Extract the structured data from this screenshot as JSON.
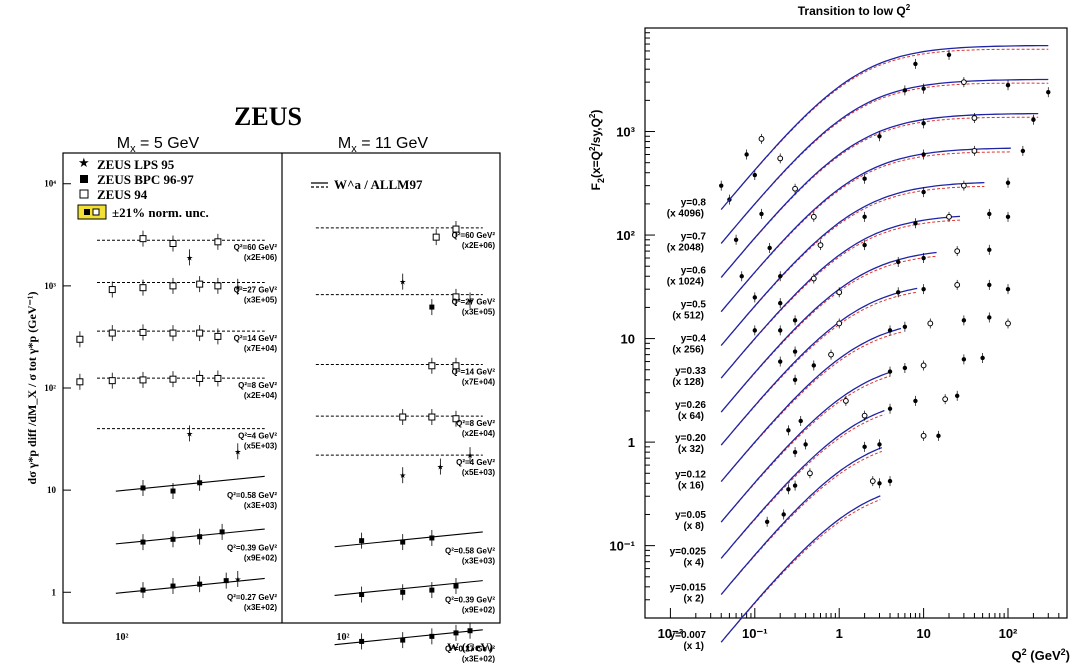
{
  "chart_data": [
    {
      "type": "scatter",
      "title": "ZEUS",
      "ylabel": "dσ γ*p diff /dM_X / σ tot γ*p (GeV⁻¹)",
      "xlabel": "W (GeV)",
      "yscale": "log",
      "xscale": "log",
      "ylim": [
        0.5,
        20000
      ],
      "y_ticks": [
        {
          "value": 1,
          "label": "1"
        },
        {
          "value": 10,
          "label": "10"
        },
        {
          "value": 100,
          "label": "10²"
        },
        {
          "value": 1000,
          "label": "10³"
        },
        {
          "value": 10000,
          "label": "10⁴"
        }
      ],
      "x_tick_label": "10²",
      "legend": {
        "position": "top-left",
        "entries": [
          "ZEUS LPS 95",
          "ZEUS BPC 96-97",
          "ZEUS 94",
          "±21% norm. unc."
        ]
      },
      "model_legend": "W^a / ALLM97",
      "panels": [
        {
          "label": "M_x = 5 GeV",
          "bins": [
            {
              "q2": "Q²=60 GeV²",
              "scale": "(x2E+06)",
              "y": 2800,
              "model": "dashed",
              "points": [
                [
                  97,
                  2900,
                  "open"
                ],
                [
                  120,
                  2600,
                  "open"
                ],
                [
                  135,
                  1900,
                  "star"
                ],
                [
                  165,
                  2700,
                  "open"
                ]
              ]
            },
            {
              "q2": "Q²=27 GeV²",
              "scale": "(x3E+05)",
              "y": 1080,
              "model": "dashed",
              "points": [
                [
                  78,
                  920,
                  "open"
                ],
                [
                  97,
                  960,
                  "open"
                ],
                [
                  120,
                  1000,
                  "open"
                ],
                [
                  145,
                  1040,
                  "open"
                ],
                [
                  165,
                  1000,
                  "open"
                ],
                [
                  190,
                  980,
                  "star"
                ]
              ]
            },
            {
              "q2": "Q²=14 GeV²",
              "scale": "(x7E+04)",
              "y": 360,
              "model": "dashed",
              "points": [
                [
                  62,
                  300,
                  "open"
                ],
                [
                  78,
                  345,
                  "open"
                ],
                [
                  97,
                  350,
                  "open"
                ],
                [
                  120,
                  345,
                  "open"
                ],
                [
                  145,
                  345,
                  "open"
                ],
                [
                  165,
                  320,
                  "open"
                ]
              ]
            },
            {
              "q2": "Q²=8 GeV²",
              "scale": "(x2E+04)",
              "y": 125,
              "model": "dashed",
              "points": [
                [
                  62,
                  115,
                  "open"
                ],
                [
                  78,
                  118,
                  "open"
                ],
                [
                  97,
                  120,
                  "open"
                ],
                [
                  120,
                  122,
                  "open"
                ],
                [
                  145,
                  124,
                  "open"
                ],
                [
                  165,
                  124,
                  "open"
                ]
              ]
            },
            {
              "q2": "Q²=4 GeV²",
              "scale": "(x5E+03)",
              "y": 40,
              "model": "dashed",
              "points": [
                [
                  135,
                  36,
                  "star"
                ],
                [
                  190,
                  24,
                  "star"
                ]
              ]
            },
            {
              "q2": "Q²=0.58 GeV²",
              "scale": "(x3E+03)",
              "y": 10.5,
              "model": "solid",
              "points": [
                [
                  97,
                  10.5,
                  "filled"
                ],
                [
                  120,
                  9.8,
                  "filled"
                ],
                [
                  145,
                  11.8,
                  "filled"
                ]
              ]
            },
            {
              "q2": "Q²=0.39 GeV²",
              "scale": "(x9E+02)",
              "y": 3.2,
              "model": "solid",
              "points": [
                [
                  97,
                  3.1,
                  "filled"
                ],
                [
                  120,
                  3.3,
                  "filled"
                ],
                [
                  145,
                  3.5,
                  "filled"
                ],
                [
                  170,
                  3.9,
                  "filled"
                ]
              ]
            },
            {
              "q2": "Q²=0.27 GeV²",
              "scale": "(x3E+02)",
              "y": 1.05,
              "model": "solid",
              "points": [
                [
                  97,
                  1.05,
                  "filled"
                ],
                [
                  120,
                  1.15,
                  "filled"
                ],
                [
                  145,
                  1.2,
                  "filled"
                ],
                [
                  175,
                  1.3,
                  "filled"
                ],
                [
                  190,
                  1.35,
                  "star"
                ]
              ]
            }
          ]
        },
        {
          "label": "M_x = 11 GeV",
          "bins": [
            {
              "q2": "Q²=60 GeV²",
              "scale": "(x2E+06)",
              "y": 3700,
              "model": "dashed",
              "points": [
                [
                  165,
                  3000,
                  "open"
                ],
                [
                  190,
                  3600,
                  "open"
                ]
              ]
            },
            {
              "q2": "Q²=27 GeV²",
              "scale": "(x3E+05)",
              "y": 820,
              "model": "dashed",
              "points": [
                [
                  130,
                  1100,
                  "star"
                ],
                [
                  160,
                  620,
                  "filled"
                ],
                [
                  190,
                  780,
                  "open"
                ],
                [
                  210,
                  720,
                  "star"
                ]
              ]
            },
            {
              "q2": "Q²=14 GeV²",
              "scale": "(x7E+04)",
              "y": 170,
              "model": "dashed",
              "points": [
                [
                  160,
                  165,
                  "open"
                ],
                [
                  190,
                  165,
                  "open"
                ]
              ]
            },
            {
              "q2": "Q²=8 GeV²",
              "scale": "(x2E+04)",
              "y": 53,
              "model": "dashed",
              "points": [
                [
                  130,
                  52,
                  "open"
                ],
                [
                  160,
                  52,
                  "open"
                ],
                [
                  190,
                  50,
                  "open"
                ]
              ]
            },
            {
              "q2": "Q²=4 GeV²",
              "scale": "(x5E+03)",
              "y": 22,
              "model": "dashed",
              "points": [
                [
                  130,
                  14,
                  "star"
                ],
                [
                  170,
                  17,
                  "star"
                ],
                [
                  210,
                  22,
                  "star"
                ]
              ]
            },
            {
              "q2": "Q²=0.58 GeV²",
              "scale": "(x3E+03)",
              "y": 3.0,
              "model": "solid",
              "points": [
                [
                  97,
                  3.2,
                  "filled"
                ],
                [
                  130,
                  3.1,
                  "filled"
                ],
                [
                  160,
                  3.4,
                  "filled"
                ]
              ]
            },
            {
              "q2": "Q²=0.39 GeV²",
              "scale": "(x9E+02)",
              "y": 1.0,
              "model": "solid",
              "points": [
                [
                  97,
                  0.95,
                  "filled"
                ],
                [
                  130,
                  1.0,
                  "filled"
                ],
                [
                  160,
                  1.05,
                  "filled"
                ],
                [
                  190,
                  1.15,
                  "filled"
                ]
              ]
            },
            {
              "q2": "Q²=0.27 GeV²",
              "scale": "(x3E+02)",
              "y": 0.33,
              "model": "solid",
              "points": [
                [
                  97,
                  0.33,
                  "filled"
                ],
                [
                  130,
                  0.34,
                  "filled"
                ],
                [
                  160,
                  0.37,
                  "filled"
                ],
                [
                  190,
                  0.4,
                  "filled"
                ],
                [
                  210,
                  0.42,
                  "filled"
                ]
              ]
            }
          ]
        }
      ]
    },
    {
      "type": "line",
      "title": "Transition to low Q²",
      "xlabel": "Q² (GeV²)",
      "ylabel": "F₂(x=Q²/sy,Q²)",
      "xscale": "log",
      "yscale": "log",
      "xlim": [
        0.005,
        500
      ],
      "ylim": [
        0.02,
        10000
      ],
      "x_ticks": [
        {
          "value": 0.01,
          "label": "10⁻²"
        },
        {
          "value": 0.1,
          "label": "10⁻¹"
        },
        {
          "value": 1,
          "label": "1"
        },
        {
          "value": 10,
          "label": "10"
        },
        {
          "value": 100,
          "label": "10²"
        }
      ],
      "y_ticks": [
        {
          "value": 0.1,
          "label": "10⁻¹"
        },
        {
          "value": 1,
          "label": "1"
        },
        {
          "value": 10,
          "label": "10"
        },
        {
          "value": 100,
          "label": "10²"
        },
        {
          "value": 1000,
          "label": "10³"
        }
      ],
      "series": [
        {
          "label": "y=0.007",
          "scale": "(x 1)",
          "amplitude": 0.45,
          "points": [
            [
              0.14,
              0.17
            ],
            [
              0.22,
              0.2
            ],
            [
              2.5,
              0.42
            ],
            [
              3,
              0.4
            ],
            [
              4,
              0.42
            ]
          ]
        },
        {
          "label": "y=0.015",
          "scale": "(x 2)",
          "amplitude": 1.3,
          "points": [
            [
              0.25,
              0.35
            ],
            [
              0.3,
              0.38
            ],
            [
              0.45,
              0.5
            ],
            [
              2,
              0.9
            ],
            [
              3,
              0.95
            ],
            [
              10,
              1.15
            ],
            [
              15,
              1.15
            ]
          ]
        },
        {
          "label": "y=0.025",
          "scale": "(x 4)",
          "amplitude": 2.9,
          "points": [
            [
              0.3,
              0.8
            ],
            [
              0.4,
              0.95
            ],
            [
              2,
              1.8
            ],
            [
              4,
              2.1
            ],
            [
              8,
              2.5
            ],
            [
              18,
              2.6
            ],
            [
              25,
              2.8
            ]
          ]
        },
        {
          "label": "y=0.05",
          "scale": "(x 8)",
          "amplitude": 6.5,
          "points": [
            [
              0.25,
              1.3
            ],
            [
              0.35,
              1.6
            ],
            [
              1.2,
              2.5
            ],
            [
              4,
              4.8
            ],
            [
              6,
              5.2
            ],
            [
              10,
              5.5
            ],
            [
              30,
              6.3
            ],
            [
              50,
              6.5
            ]
          ]
        },
        {
          "label": "y=0.12",
          "scale": "(x 16)",
          "amplitude": 16,
          "points": [
            [
              0.3,
              4
            ],
            [
              0.5,
              5.5
            ],
            [
              0.8,
              7
            ],
            [
              4,
              12
            ],
            [
              6,
              13
            ],
            [
              12,
              14
            ],
            [
              30,
              15
            ],
            [
              60,
              16
            ],
            [
              100,
              14
            ]
          ]
        },
        {
          "label": "y=0.20",
          "scale": "(x 32)",
          "amplitude": 36,
          "points": [
            [
              0.2,
              6
            ],
            [
              0.3,
              7.5
            ],
            [
              1,
              14
            ],
            [
              5,
              28
            ],
            [
              10,
              30
            ],
            [
              25,
              33
            ],
            [
              60,
              33
            ],
            [
              100,
              30
            ]
          ]
        },
        {
          "label": "y=0.26",
          "scale": "(x 64)",
          "amplitude": 75,
          "points": [
            [
              0.2,
              12
            ],
            [
              0.3,
              15
            ],
            [
              1,
              28
            ],
            [
              5,
              55
            ],
            [
              10,
              60
            ],
            [
              25,
              70
            ],
            [
              60,
              72
            ]
          ]
        },
        {
          "label": "y=0.33",
          "scale": "(x 128)",
          "amplitude": 160,
          "points": [
            [
              0.1,
              12
            ],
            [
              0.2,
              22
            ],
            [
              0.5,
              38
            ],
            [
              2,
              80
            ],
            [
              8,
              130
            ],
            [
              20,
              150
            ],
            [
              60,
              160
            ],
            [
              100,
              150
            ]
          ]
        },
        {
          "label": "y=0.4",
          "scale": "(x 256)",
          "amplitude": 330,
          "points": [
            [
              0.1,
              25
            ],
            [
              0.2,
              40
            ],
            [
              0.6,
              80
            ],
            [
              2,
              150
            ],
            [
              10,
              260
            ],
            [
              30,
              300
            ],
            [
              100,
              320
            ]
          ]
        },
        {
          "label": "y=0.5",
          "scale": "(x 512)",
          "amplitude": 700,
          "points": [
            [
              0.07,
              40
            ],
            [
              0.15,
              75
            ],
            [
              0.5,
              150
            ],
            [
              2,
              350
            ],
            [
              10,
              600
            ],
            [
              40,
              650
            ],
            [
              150,
              650
            ]
          ]
        },
        {
          "label": "y=0.6",
          "scale": "(x 1024)",
          "amplitude": 1500,
          "points": [
            [
              0.06,
              90
            ],
            [
              0.12,
              160
            ],
            [
              0.3,
              280
            ],
            [
              3,
              900
            ],
            [
              10,
              1200
            ],
            [
              40,
              1350
            ],
            [
              200,
              1300
            ]
          ]
        },
        {
          "label": "y=0.7",
          "scale": "(x 2048)",
          "amplitude": 3200,
          "points": [
            [
              0.05,
              220
            ],
            [
              0.1,
              380
            ],
            [
              0.2,
              550
            ],
            [
              6,
              2500
            ],
            [
              10,
              2600
            ],
            [
              30,
              3000
            ],
            [
              100,
              2800
            ],
            [
              300,
              2400
            ]
          ]
        },
        {
          "label": "y=0.8",
          "scale": "(x 4096)",
          "amplitude": 6800,
          "points": [
            [
              0.04,
              300
            ],
            [
              0.08,
              600
            ],
            [
              0.12,
              850
            ],
            [
              8,
              4500
            ],
            [
              20,
              5500
            ]
          ]
        }
      ]
    }
  ]
}
